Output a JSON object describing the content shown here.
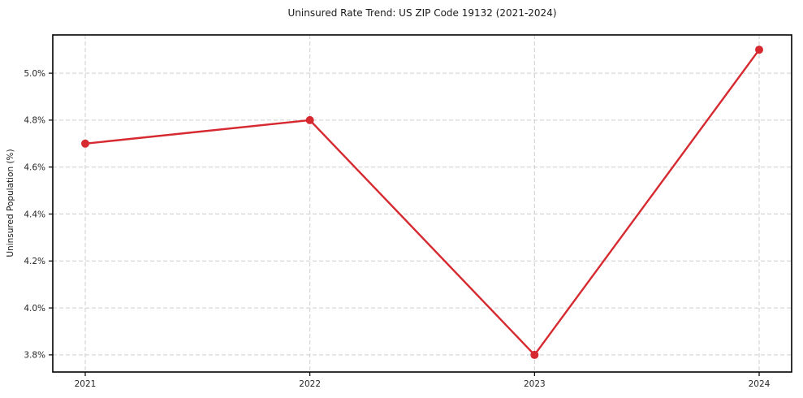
{
  "chart_data": {
    "type": "line",
    "title": "Uninsured Rate Trend: US ZIP Code 19132 (2021-2024)",
    "xlabel": "",
    "ylabel": "Uninsured Population (%)",
    "categories": [
      "2021",
      "2022",
      "2023",
      "2024"
    ],
    "series": [
      {
        "name": "Uninsured Rate",
        "values": [
          4.7,
          4.8,
          3.8,
          5.1
        ],
        "color": "#d62a30",
        "marker": "circle"
      }
    ],
    "y_tick_labels": [
      "3.8%",
      "4.0%",
      "4.2%",
      "4.4%",
      "4.6%",
      "4.8%",
      "5.0%"
    ],
    "y_tick_values": [
      3.8,
      4.0,
      4.2,
      4.4,
      4.6,
      4.8,
      5.0
    ],
    "ylim": [
      3.727,
      5.163
    ],
    "grid": "dashed",
    "grid_color": "#cdcdcd",
    "axis_color": "#000000",
    "tick_label_color": "#262626",
    "legend_position": "none"
  }
}
